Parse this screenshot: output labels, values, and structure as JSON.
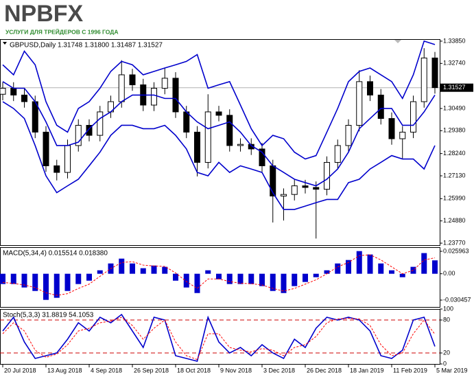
{
  "header": {
    "logo": "NPBFX",
    "tagline": "УСЛУГИ ДЛЯ ТРЕЙДЕРОВ С 1996 ГОДА"
  },
  "chart_data": [
    {
      "type": "candlestick",
      "title": "GBPUSD,Daily  1.31748 1.31800 1.31487 1.31527",
      "categories": [
        "20 Jul 2018",
        null,
        null,
        null,
        "13 Aug 2018",
        null,
        null,
        null,
        "4 Sep 2018",
        null,
        null,
        null,
        "26 Sep 2018",
        null,
        null,
        null,
        "18 Oct 2018",
        null,
        null,
        null,
        "9 Nov 2018",
        null,
        null,
        null,
        "3 Dec 2018",
        null,
        null,
        null,
        "26 Dec 2018",
        null,
        null,
        null,
        "18 Jan 2019",
        null,
        null,
        null,
        "11 Feb 2019",
        null,
        null,
        null,
        "5 Mar 2019"
      ],
      "open": [
        1.312,
        1.315,
        1.3116,
        1.3083,
        1.2931,
        1.2763,
        1.273,
        1.2864,
        1.2965,
        1.2915,
        1.3032,
        1.3083,
        1.3217,
        1.3167,
        1.3066,
        1.315,
        1.32,
        1.3032,
        1.2931,
        1.278,
        1.3032,
        1.3015,
        1.2864,
        1.287,
        1.2847,
        1.2763,
        1.2612,
        1.262,
        1.2663,
        1.2655,
        1.2646,
        1.278,
        1.2864,
        1.2965,
        1.3183,
        1.3116,
        1.2999,
        1.2898,
        1.2931,
        1.3083,
        1.3301
      ],
      "high": [
        1.318,
        1.318,
        1.3146,
        1.3113,
        1.2961,
        1.2793,
        1.2894,
        1.2995,
        1.2995,
        1.3062,
        1.3113,
        1.329,
        1.3247,
        1.3197,
        1.318,
        1.325,
        1.323,
        1.3062,
        1.2961,
        1.312,
        1.3062,
        1.3045,
        1.29,
        1.29,
        1.2877,
        1.2793,
        1.265,
        1.2693,
        1.2693,
        1.2685,
        1.281,
        1.2894,
        1.2995,
        1.324,
        1.3213,
        1.3146,
        1.3029,
        1.2961,
        1.3113,
        1.335,
        1.3331
      ],
      "low": [
        1.309,
        1.3086,
        1.3053,
        1.2901,
        1.2733,
        1.269,
        1.27,
        1.2834,
        1.2885,
        1.2885,
        1.3002,
        1.3053,
        1.3137,
        1.3036,
        1.3036,
        1.312,
        1.3002,
        1.2901,
        1.271,
        1.275,
        1.2985,
        1.2834,
        1.2834,
        1.2817,
        1.2733,
        1.248,
        1.249,
        1.259,
        1.2625,
        1.24,
        1.2616,
        1.275,
        1.2834,
        1.2935,
        1.3086,
        1.2969,
        1.2868,
        1.28,
        1.2901,
        1.3053,
        1.3123
      ],
      "close": [
        1.315,
        1.3116,
        1.3083,
        1.2931,
        1.2763,
        1.273,
        1.2864,
        1.2965,
        1.2915,
        1.3032,
        1.3083,
        1.3217,
        1.3167,
        1.3066,
        1.315,
        1.32,
        1.3032,
        1.2931,
        1.278,
        1.3032,
        1.3015,
        1.2864,
        1.287,
        1.2847,
        1.2763,
        1.2612,
        1.262,
        1.2663,
        1.2655,
        1.2646,
        1.278,
        1.2864,
        1.2965,
        1.3183,
        1.3116,
        1.2999,
        1.2898,
        1.2931,
        1.3083,
        1.3301,
        1.3153
      ],
      "up_color": "#ffffff",
      "down_color": "#000000",
      "series": [
        {
          "color": "#0000cc",
          "values": [
            1.3267,
            1.3217,
            1.3335,
            1.3267,
            1.3083,
            1.2965,
            1.2931,
            1.3049,
            1.3083,
            1.315,
            1.3234,
            1.3284,
            1.3267,
            1.3217,
            1.3234,
            1.3251,
            1.3267,
            1.3284,
            1.3318,
            1.315,
            1.3167,
            1.3183,
            1.3066,
            1.2948,
            1.2864,
            1.2915,
            1.2898,
            1.2831,
            1.2797,
            1.2814,
            1.2931,
            1.3049,
            1.3183,
            1.3234,
            1.3251,
            1.3217,
            1.3183,
            1.3099,
            1.3217,
            1.3385,
            1.3368
          ]
        },
        {
          "color": "#0000cc",
          "values": [
            1.3183,
            1.315,
            1.315,
            1.3083,
            1.2982,
            1.2864,
            1.2864,
            1.2881,
            1.2948,
            1.2999,
            1.3032,
            1.3083,
            1.3116,
            1.3116,
            1.3116,
            1.3099,
            1.3099,
            1.3032,
            1.2982,
            1.2948,
            1.2965,
            1.2982,
            1.2931,
            1.2864,
            1.2831,
            1.2763,
            1.273,
            1.2696,
            1.2679,
            1.2663,
            1.2696,
            1.2747,
            1.2831,
            1.2948,
            1.2999,
            1.3049,
            1.3049,
            1.2965,
            1.2965,
            1.3032,
            1.3116
          ]
        },
        {
          "color": "#0000cc",
          "values": [
            1.3083,
            1.3049,
            1.2999,
            1.2864,
            1.2713,
            1.2629,
            1.2663,
            1.2696,
            1.2763,
            1.2831,
            1.2915,
            1.2965,
            1.2965,
            1.2948,
            1.2948,
            1.2965,
            1.2915,
            1.2847,
            1.273,
            1.2713,
            1.278,
            1.273,
            1.2763,
            1.2747,
            1.273,
            1.2629,
            1.2545,
            1.2545,
            1.2562,
            1.2579,
            1.2595,
            1.2595,
            1.2679,
            1.2696,
            1.2747,
            1.278,
            1.2814,
            1.2797,
            1.2797,
            1.2747,
            1.2864
          ]
        }
      ],
      "ylim": [
        1.2367,
        1.3395
      ],
      "yticks": [
        {
          "value": 1.3385,
          "label": "1.33850"
        },
        {
          "value": 1.3274,
          "label": "1.32740"
        },
        {
          "value": 1.3049,
          "label": "1.30490"
        },
        {
          "value": 1.2938,
          "label": "1.29380"
        },
        {
          "value": 1.2824,
          "label": "1.28240"
        },
        {
          "value": 1.2713,
          "label": "1.27130"
        },
        {
          "value": 1.2599,
          "label": "1.25990"
        },
        {
          "value": 1.2488,
          "label": "1.24880"
        },
        {
          "value": 1.2377,
          "label": "1.23770"
        }
      ],
      "last_price": {
        "value": 1.31527,
        "label": "1.31527"
      }
    },
    {
      "type": "macd",
      "title": "MACD(5,34,4) 0.015514 0.018380",
      "color": "#0000cc",
      "values": [
        -0.0119,
        -0.0119,
        -0.0159,
        -0.0199,
        -0.0302,
        -0.0278,
        -0.0199,
        -0.0119,
        -0.008,
        0.004,
        0.0119,
        0.0175,
        0.0119,
        0.0064,
        0.0095,
        0.008,
        -0.008,
        -0.0159,
        -0.0223,
        0.004,
        -0.0064,
        -0.0119,
        -0.0119,
        -0.0119,
        -0.0143,
        -0.0199,
        -0.0223,
        -0.0143,
        -0.0095,
        -0.004,
        0.004,
        0.0119,
        0.0159,
        0.0262,
        0.0223,
        0.0119,
        0.004,
        -0.004,
        0.008,
        0.0239,
        0.0155
      ],
      "series": [
        {
          "color": "#ff0000",
          "dash": true,
          "values": [
            -0.01,
            -0.0112,
            -0.013,
            -0.016,
            -0.022,
            -0.025,
            -0.023,
            -0.017,
            -0.012,
            -0.003,
            0.006,
            0.013,
            0.014,
            0.01,
            0.009,
            0.0085,
            0.001,
            -0.009,
            -0.017,
            -0.006,
            -0.006,
            -0.009,
            -0.011,
            -0.0115,
            -0.013,
            -0.017,
            -0.02,
            -0.017,
            -0.012,
            -0.007,
            0.0,
            0.008,
            0.013,
            0.021,
            0.022,
            0.016,
            0.008,
            0.0,
            0.004,
            0.016,
            0.0184
          ]
        }
      ],
      "ylim": [
        -0.0384,
        0.0307
      ],
      "yticks": [
        0.025963,
        {
          "value": 0,
          "label": "0.00"
        },
        -0.030457
      ]
    },
    {
      "type": "line",
      "title": "Stoch(5,3,3) 31.8819 54.1053",
      "series": [
        {
          "color": "#0000cc",
          "dash": false,
          "values": [
            60,
            85,
            40,
            10,
            15,
            20,
            45,
            75,
            60,
            85,
            75,
            90,
            60,
            30,
            85,
            80,
            15,
            10,
            5,
            85,
            40,
            20,
            30,
            15,
            35,
            20,
            10,
            45,
            30,
            65,
            85,
            80,
            85,
            80,
            60,
            15,
            10,
            25,
            80,
            85,
            31.8819
          ]
        },
        {
          "color": "#ff0000",
          "dash": true,
          "values": [
            55,
            75,
            60,
            25,
            12,
            18,
            35,
            60,
            65,
            75,
            78,
            85,
            70,
            45,
            65,
            80,
            40,
            15,
            8,
            55,
            55,
            30,
            25,
            22,
            28,
            25,
            15,
            30,
            35,
            50,
            75,
            82,
            83,
            82,
            70,
            35,
            15,
            20,
            55,
            80,
            54.1053
          ]
        }
      ],
      "levels": [
        20,
        80
      ],
      "level_color": "#cc0000",
      "ylim": [
        0,
        100
      ],
      "yticks": [
        100,
        80,
        20,
        0
      ]
    }
  ]
}
